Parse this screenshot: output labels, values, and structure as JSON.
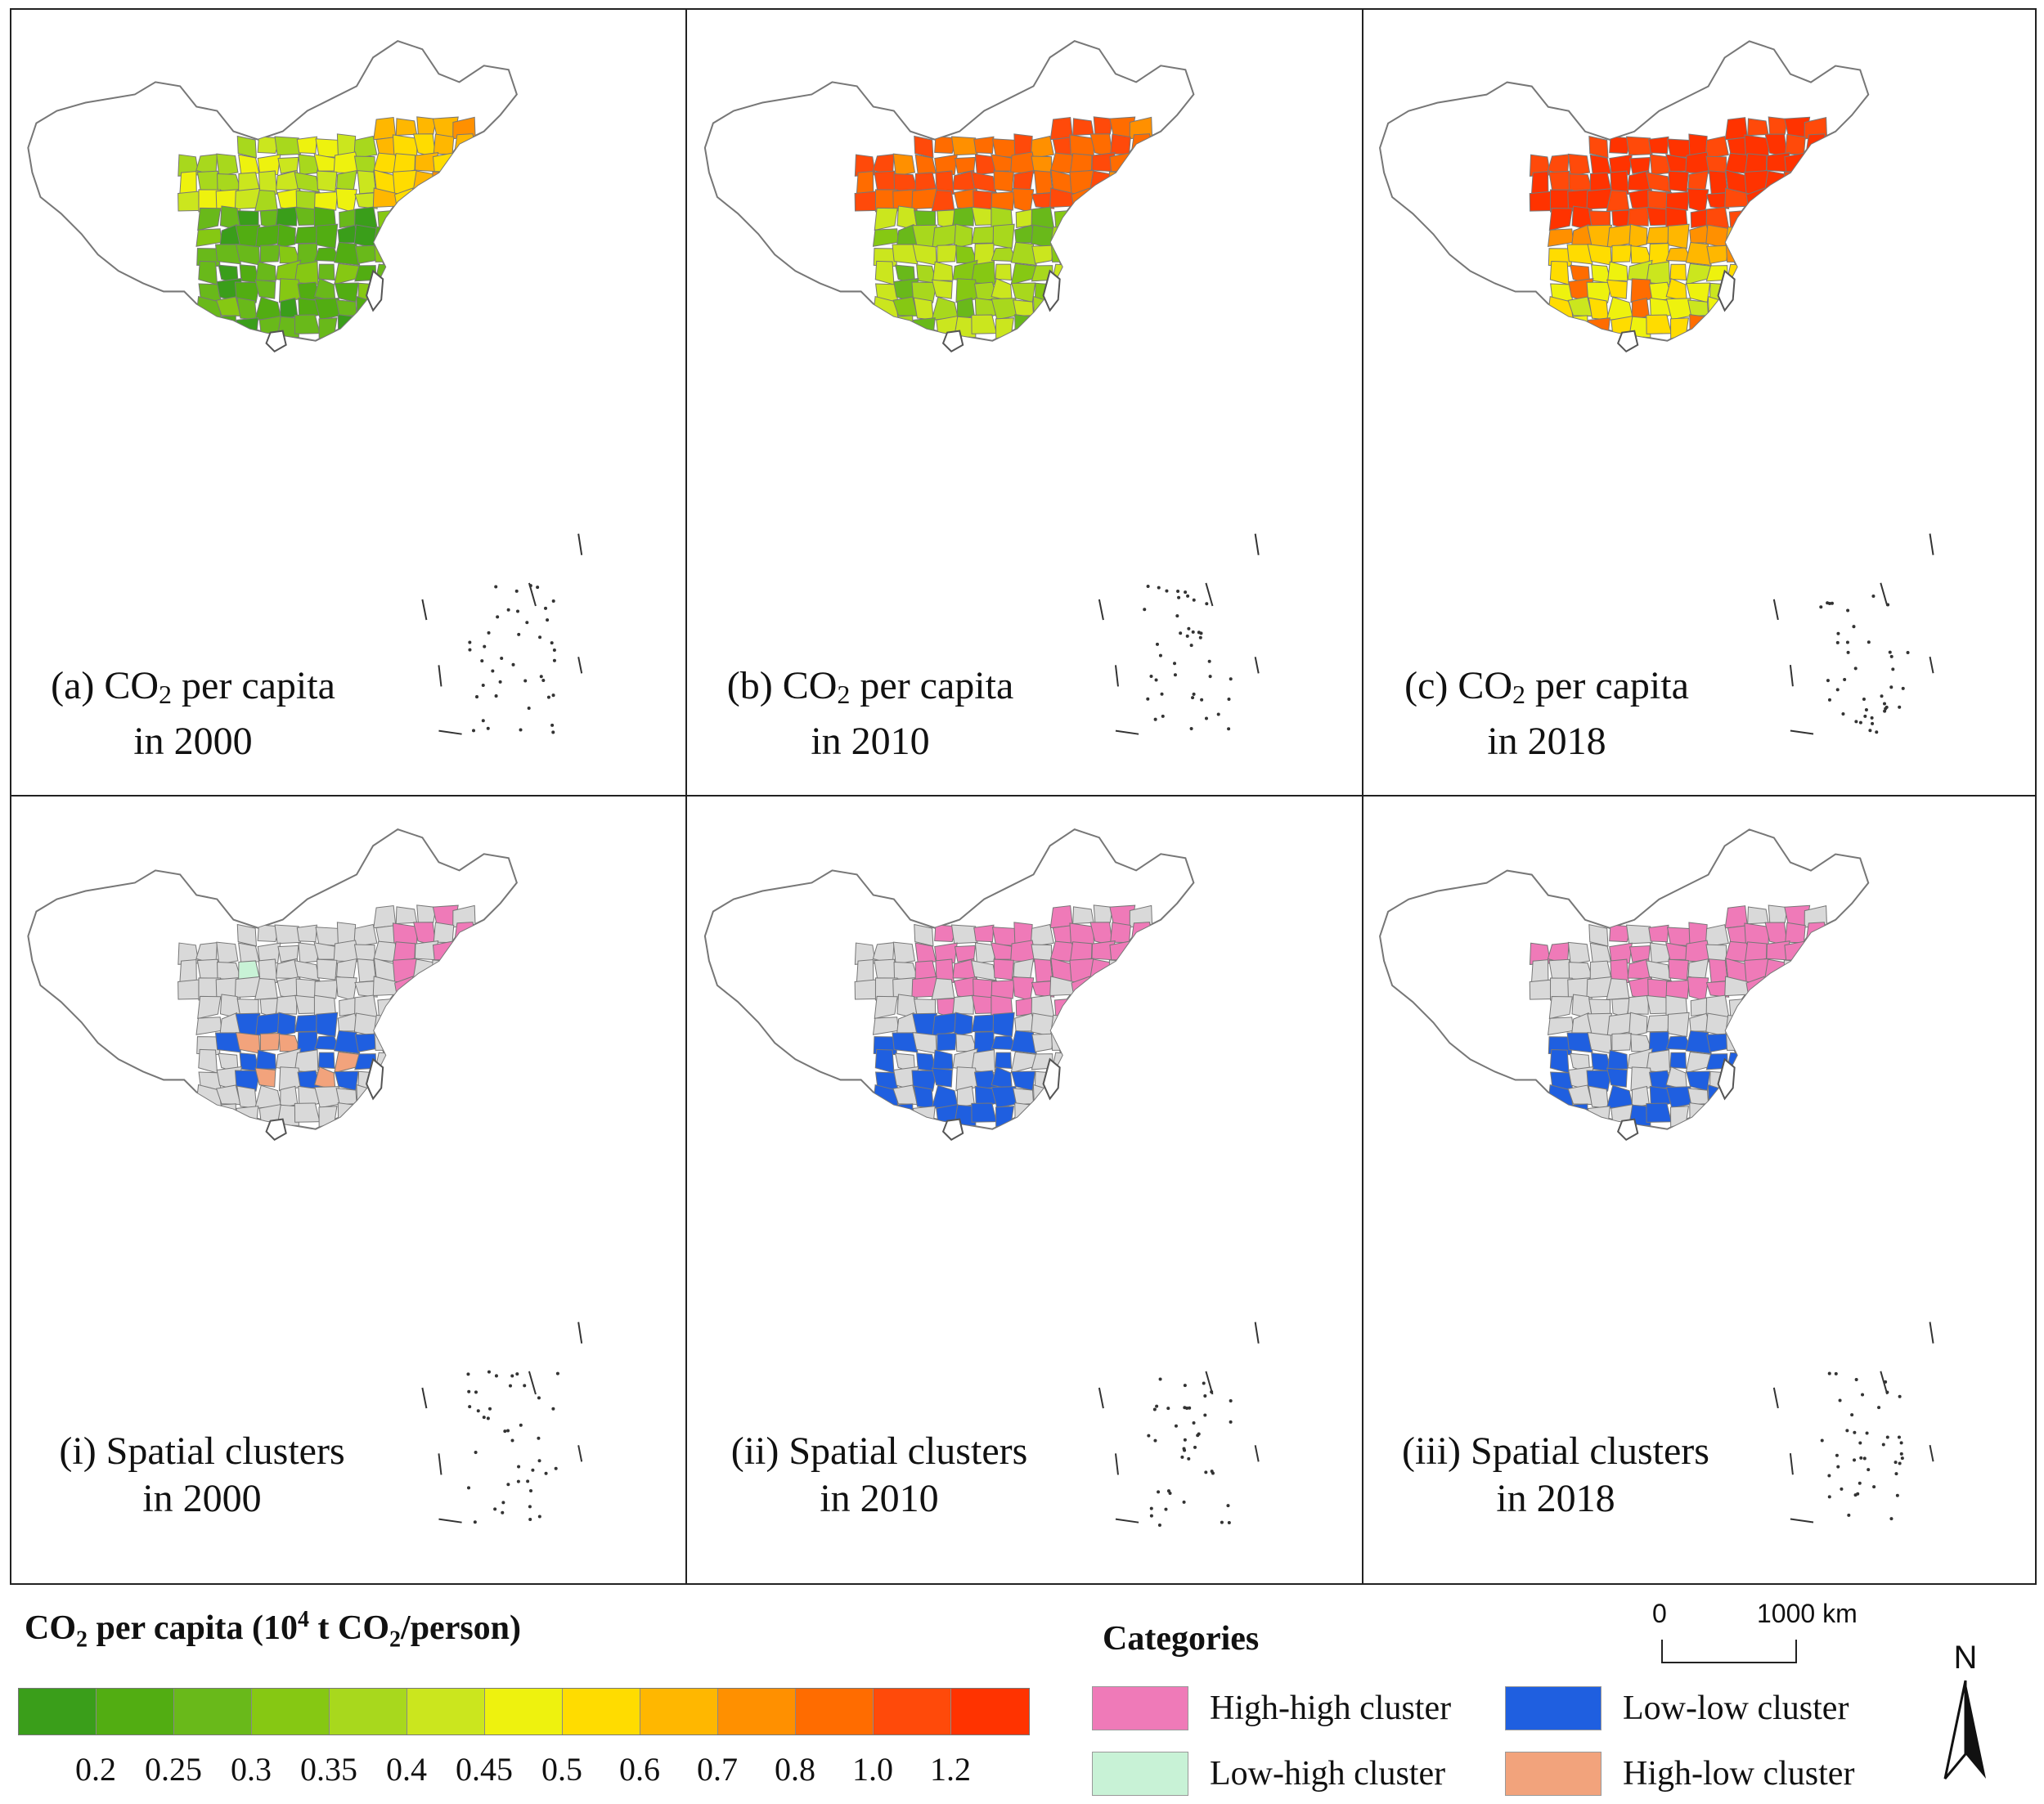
{
  "panels": [
    {
      "id": "a",
      "line1_pre": "(a) CO",
      "line1_post": " per capita",
      "line2": "in 2000",
      "theme": "2000"
    },
    {
      "id": "b",
      "line1_pre": "(b) CO",
      "line1_post": " per capita",
      "line2": "in 2010",
      "theme": "2010"
    },
    {
      "id": "c",
      "line1_pre": "(c) CO",
      "line1_post": " per capita",
      "line2": "in 2018",
      "theme": "2018"
    },
    {
      "id": "i",
      "line1": "(i) Spatial clusters",
      "line2": "in 2000",
      "theme": "c2000"
    },
    {
      "id": "ii",
      "line1": "(ii) Spatial clusters",
      "line2": "in 2010",
      "theme": "c2010"
    },
    {
      "id": "iii",
      "line1": "(iii) Spatial clusters",
      "line2": "in 2018",
      "theme": "c2018"
    }
  ],
  "subscript_two": "2",
  "legend": {
    "title_pre": "CO",
    "title_mid": " per capita (10",
    "title_exp": "4",
    "title_mid2": " t CO",
    "title_post": "/person)",
    "ticks": [
      "0.2",
      "0.25",
      "0.3",
      "0.35",
      "0.4",
      "0.45",
      "0.5",
      "0.6",
      "0.7",
      "0.8",
      "1.0",
      "1.2"
    ],
    "colors": [
      "#3a9e1a",
      "#52ad12",
      "#69b91a",
      "#86c813",
      "#a8d81d",
      "#cbe61e",
      "#eef20e",
      "#ffdc00",
      "#ffb700",
      "#ff9000",
      "#ff6c00",
      "#ff4a0a",
      "#ff3300"
    ]
  },
  "categories": {
    "title": "Categories",
    "items": [
      {
        "label": "High-high cluster",
        "color": "#ef7ab8"
      },
      {
        "label": "Low-low cluster",
        "color": "#1f5fe0"
      },
      {
        "label": "Low-high cluster",
        "color": "#c8f2d6"
      },
      {
        "label": "High-low cluster",
        "color": "#f2a37c"
      }
    ],
    "not_significant_color": "#d9d9d9"
  },
  "scale_bar": {
    "zero": "0",
    "distance": "1000 km"
  },
  "north_label": "N"
}
